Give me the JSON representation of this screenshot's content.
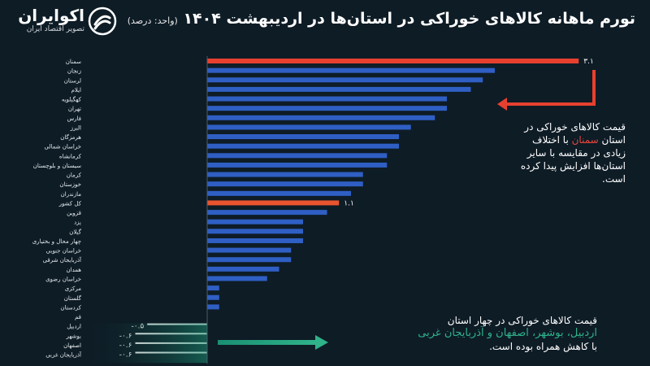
{
  "header": {
    "title": "تورم ماهانه کالاهای خوراکی در استان‌ها در اردیبهشت ۱۴۰۴",
    "unit": "(واحد: درصد)"
  },
  "logo": {
    "name": "اکوایران",
    "tagline": "تصویر اقتصاد ایران"
  },
  "annotation_top": {
    "line1": "قیمت کالاهای خوراکی در",
    "line2_pre": "استان ",
    "line2_highlight": "سمنان",
    "line2_post": " با اختلاف",
    "line3": "زیادی در مقایسه با سایر",
    "line4": "استان‌ها افزایش پیدا کرده",
    "line5": "است."
  },
  "annotation_bottom": {
    "line1": "قیمت کالاهای خوراکی در چهار استان",
    "line2_highlight": "اردبیل، بوشهر، اصفهان و آذربایجان غربی",
    "line3": "با کاهش همراه بوده است."
  },
  "colors": {
    "background": "#0e1c26",
    "bar": "#2f5fc4",
    "highlight": "#e8402f",
    "national": "#e8542f",
    "negative": "#1a8f72",
    "text": "#ffffff"
  },
  "chart_data": {
    "type": "bar",
    "orientation": "horizontal",
    "categories": [
      "سمنان",
      "زنجان",
      "لرستان",
      "ایلام",
      "کهگیلویه",
      "تهران",
      "فارس",
      "البرز",
      "هرمزگان",
      "خراسان شمالی",
      "کرمانشاه",
      "سیستان و بلوچستان",
      "کرمان",
      "خوزستان",
      "مازندران",
      "کل کشور",
      "قزوین",
      "یزد",
      "گیلان",
      "چهار محال و بختیاری",
      "خراسان جنوبی",
      "آذربایجان شرقی",
      "همدان",
      "خراسان رضوی",
      "مرکزی",
      "گلستان",
      "کردستان",
      "قم",
      "اردبیل",
      "بوشهر",
      "اصفهان",
      "آذربایجان غربی"
    ],
    "values": [
      3.1,
      2.4,
      2.3,
      2.2,
      2.0,
      2.0,
      1.9,
      1.7,
      1.6,
      1.6,
      1.5,
      1.5,
      1.3,
      1.3,
      1.2,
      1.1,
      1.0,
      0.8,
      0.8,
      0.8,
      0.7,
      0.7,
      0.6,
      0.5,
      0.1,
      0.1,
      0.1,
      0.0,
      -0.5,
      -0.6,
      -0.6,
      -0.6
    ],
    "data_labels": {
      "0": "۳.۱",
      "15": "۱.۱",
      "28": "-۰.۵",
      "29": "-۰.۶",
      "30": "-۰.۶",
      "31": "-۰.۶"
    },
    "highlighted_index": 0,
    "national_index": 15,
    "xlim": [
      -0.6,
      3.1
    ]
  }
}
